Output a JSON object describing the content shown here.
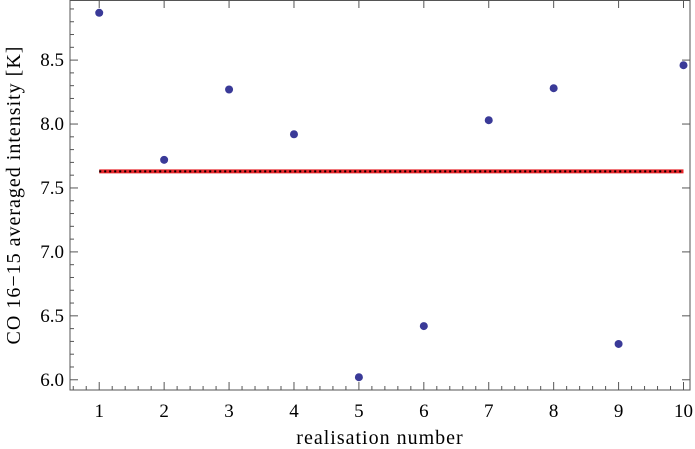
{
  "chart_data": {
    "type": "scatter",
    "title": "",
    "xlabel": "realisation number",
    "ylabel": "CO 16−15 averaged intensity [K]",
    "xlim": [
      0.55,
      10.1
    ],
    "ylim": [
      5.92,
      8.97
    ],
    "x_ticks": [
      1,
      2,
      3,
      4,
      5,
      6,
      7,
      8,
      9,
      10
    ],
    "x_tick_labels": [
      "1",
      "2",
      "3",
      "4",
      "5",
      "6",
      "7",
      "8",
      "9",
      "10"
    ],
    "y_ticks": [
      6.0,
      6.5,
      7.0,
      7.5,
      8.0,
      8.5
    ],
    "y_tick_labels": [
      "6.0",
      "6.5",
      "7.0",
      "7.5",
      "8.0",
      "8.5"
    ],
    "grid": false,
    "series": [
      {
        "x": [
          1,
          2,
          3,
          4,
          5,
          6,
          7,
          8,
          9,
          10
        ],
        "y": [
          8.87,
          7.72,
          8.27,
          7.92,
          6.02,
          6.42,
          8.03,
          8.28,
          6.28,
          8.46
        ],
        "color": "#3a3a98"
      }
    ],
    "mean_line": {
      "value": 7.63,
      "color": "#e8262a",
      "overlay_color": "#000000",
      "overlay_style": "dotted"
    }
  }
}
